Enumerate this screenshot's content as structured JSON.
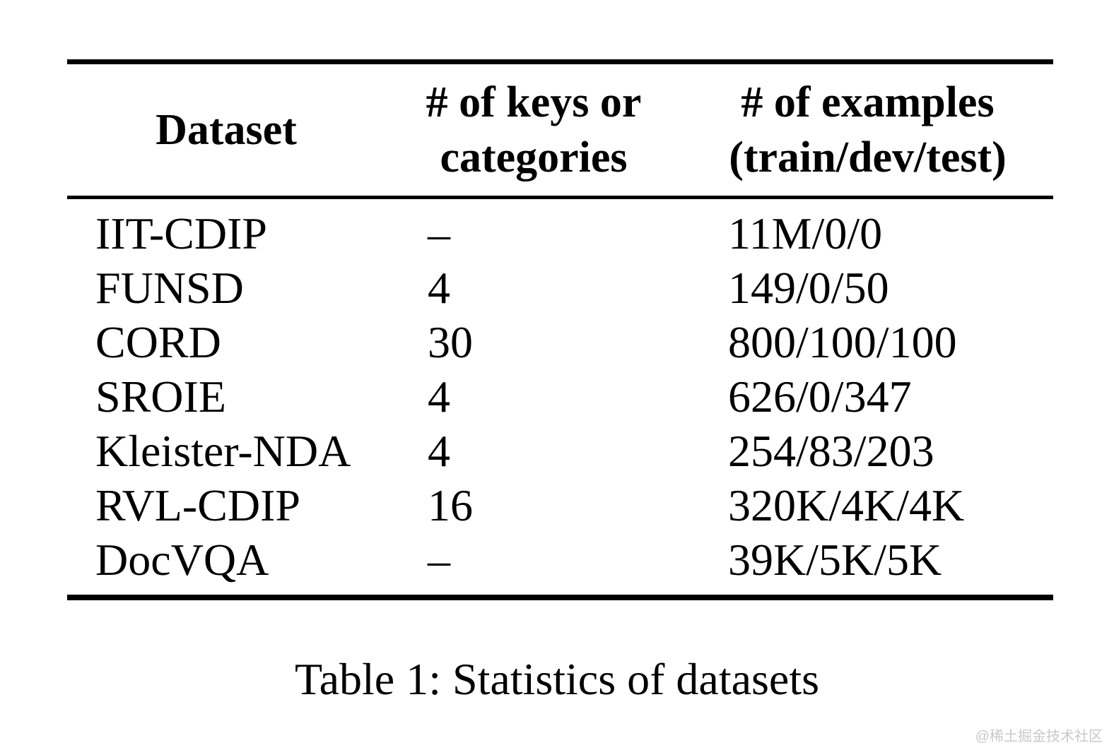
{
  "table": {
    "caption": "Table 1: Statistics of datasets",
    "columns": [
      {
        "label": "Dataset"
      },
      {
        "label": "# of keys or\ncategories"
      },
      {
        "label": "# of examples\n(train/dev/test)"
      }
    ],
    "rows": [
      [
        "IIT-CDIP",
        "–",
        "11M/0/0"
      ],
      [
        "FUNSD",
        "4",
        "149/0/50"
      ],
      [
        "CORD",
        "30",
        "800/100/100"
      ],
      [
        "SROIE",
        "4",
        "626/0/347"
      ],
      [
        "Kleister-NDA",
        "4",
        "254/83/203"
      ],
      [
        "RVL-CDIP",
        "16",
        "320K/4K/4K"
      ],
      [
        "DocVQA",
        "–",
        "39K/5K/5K"
      ]
    ]
  },
  "chart_data": {
    "type": "table",
    "title": "Table 1: Statistics of datasets",
    "columns": [
      "Dataset",
      "# of keys or categories",
      "# of examples (train/dev/test)"
    ],
    "rows": [
      [
        "IIT-CDIP",
        "–",
        "11M/0/0"
      ],
      [
        "FUNSD",
        "4",
        "149/0/50"
      ],
      [
        "CORD",
        "30",
        "800/100/100"
      ],
      [
        "SROIE",
        "4",
        "626/0/347"
      ],
      [
        "Kleister-NDA",
        "4",
        "254/83/203"
      ],
      [
        "RVL-CDIP",
        "16",
        "320K/4K/4K"
      ],
      [
        "DocVQA",
        "–",
        "39K/5K/5K"
      ]
    ]
  },
  "watermark": "@稀土掘金技术社区"
}
